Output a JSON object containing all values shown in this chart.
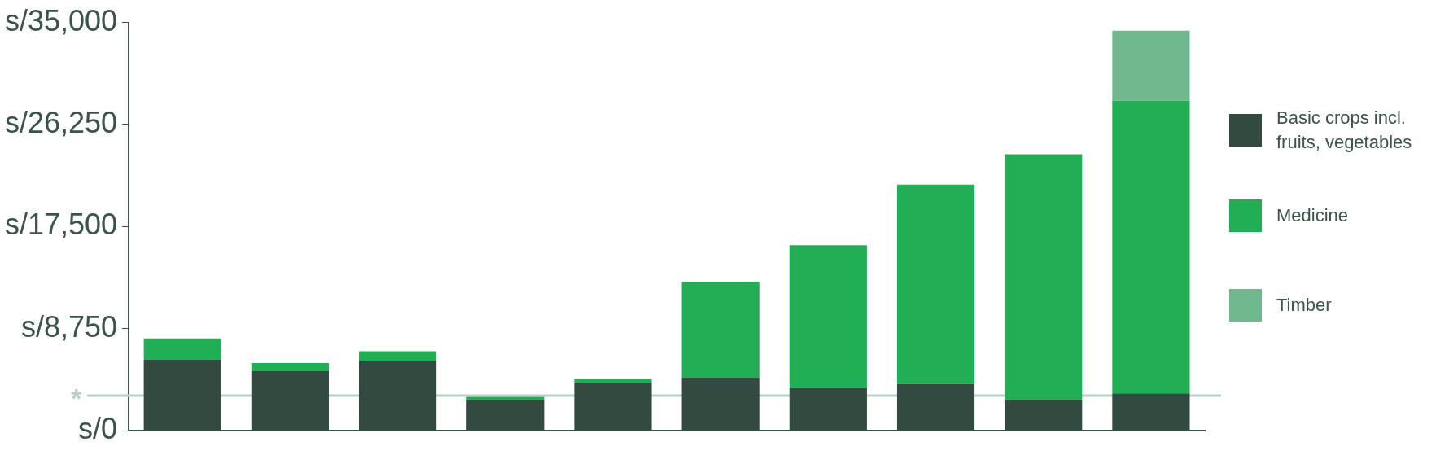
{
  "chart_data": {
    "type": "bar",
    "stacked": true,
    "categories": [
      null,
      null,
      null,
      null,
      null,
      null,
      null,
      null,
      null,
      null
    ],
    "series": [
      {
        "name": "Basic crops incl. fruits, vegetables",
        "color": "#324a40",
        "values": [
          6100,
          5100,
          6000,
          2600,
          4100,
          4500,
          3650,
          4000,
          2600,
          3200
        ]
      },
      {
        "name": "Medicine",
        "color": "#22ae55",
        "values": [
          1800,
          700,
          800,
          300,
          300,
          8250,
          12250,
          17100,
          21100,
          25100
        ]
      },
      {
        "name": "Timber",
        "color": "#70b98e",
        "values": [
          null,
          null,
          null,
          null,
          null,
          null,
          null,
          null,
          null,
          6000
        ]
      }
    ],
    "ylim": [
      0,
      35000
    ],
    "yticks": [
      {
        "value": 0,
        "label": "s/0"
      },
      {
        "value": 8750,
        "label": "s/8,750"
      },
      {
        "value": 17500,
        "label": "s/17,500"
      },
      {
        "value": 26250,
        "label": "s/26,250"
      },
      {
        "value": 35000,
        "label": "s/35,000"
      }
    ],
    "ref_lines": [
      {
        "axis": "y",
        "value": 3000,
        "label": "*",
        "color": "#b7cfc5"
      }
    ],
    "tick_labels": "y",
    "legend": "right"
  }
}
